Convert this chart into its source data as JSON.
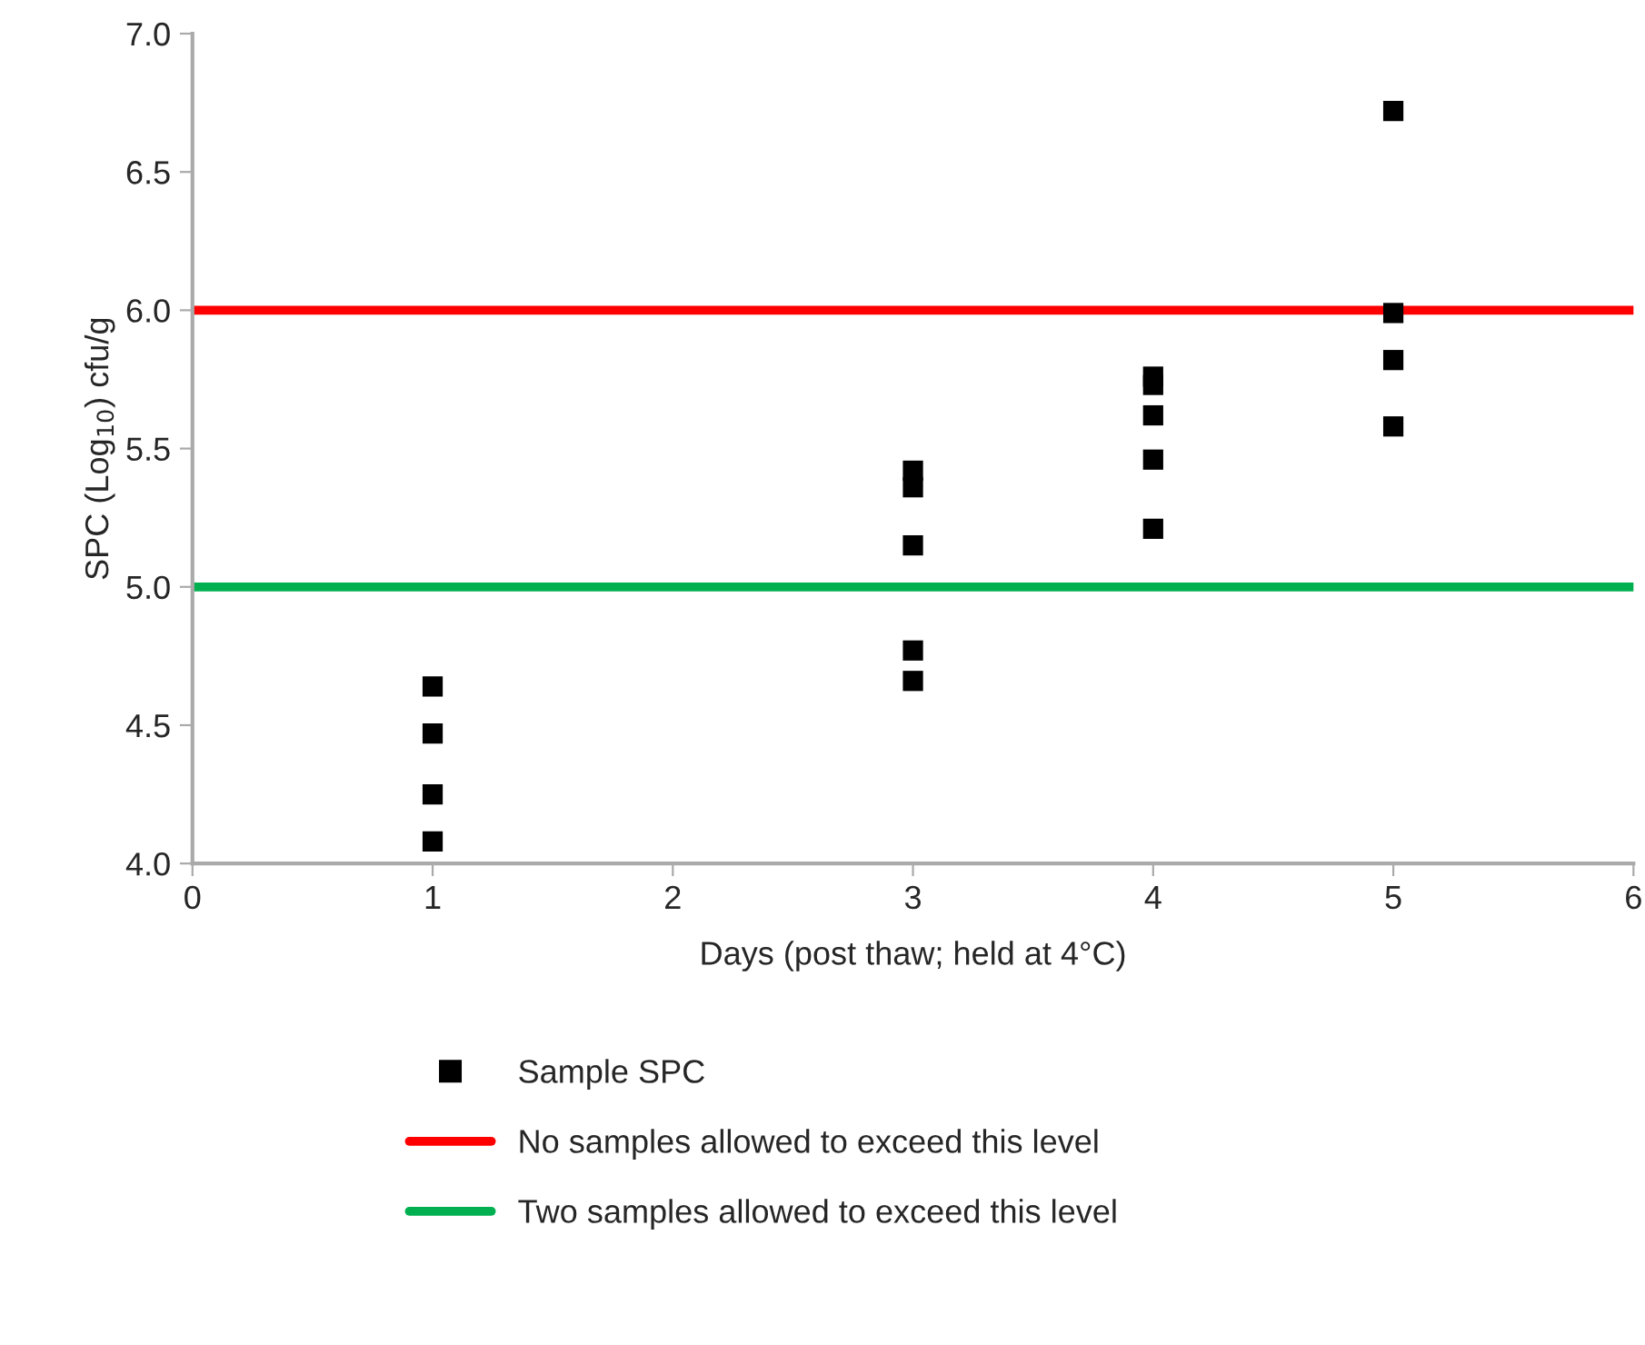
{
  "chart_data": {
    "type": "scatter",
    "xlabel": "Days (post thaw; held at 4°C)",
    "ylabel": "SPC (Log$_{10}$) cfu/g",
    "series": [
      {
        "name": "Sample SPC",
        "color": "#000000",
        "x": [
          1,
          1,
          1,
          1,
          3,
          3,
          3,
          3,
          3,
          4,
          4,
          4,
          4,
          4,
          5,
          5,
          5,
          5
        ],
        "values": [
          4.64,
          4.47,
          4.25,
          4.08,
          5.42,
          5.36,
          5.15,
          4.77,
          4.66,
          5.76,
          5.73,
          5.62,
          5.46,
          5.21,
          6.72,
          5.99,
          5.82,
          5.58
        ]
      }
    ],
    "ref_lines": [
      {
        "axis": "y",
        "value": 6,
        "label": "No samples allowed to exceed this level",
        "color": "#ff0000"
      },
      {
        "axis": "y",
        "value": 5,
        "label": "Two samples allowed to exceed this level",
        "color": "#00b050"
      }
    ],
    "marker": "square",
    "xlim": [
      0,
      6
    ],
    "xticks": [
      0,
      1,
      2,
      3,
      4,
      5,
      6
    ],
    "ylim": [
      4,
      7
    ],
    "yticks": [
      {
        "value": 4,
        "label": "4.0"
      },
      {
        "value": 4.5,
        "label": "4.5"
      },
      {
        "value": 5,
        "label": "5.0"
      },
      {
        "value": 5.5,
        "label": "5.5"
      },
      {
        "value": 6,
        "label": "6.0"
      },
      {
        "value": 6.5,
        "label": "6.5"
      },
      {
        "value": 7,
        "label": "7.0"
      }
    ],
    "grid": false,
    "legend": "bottom"
  }
}
